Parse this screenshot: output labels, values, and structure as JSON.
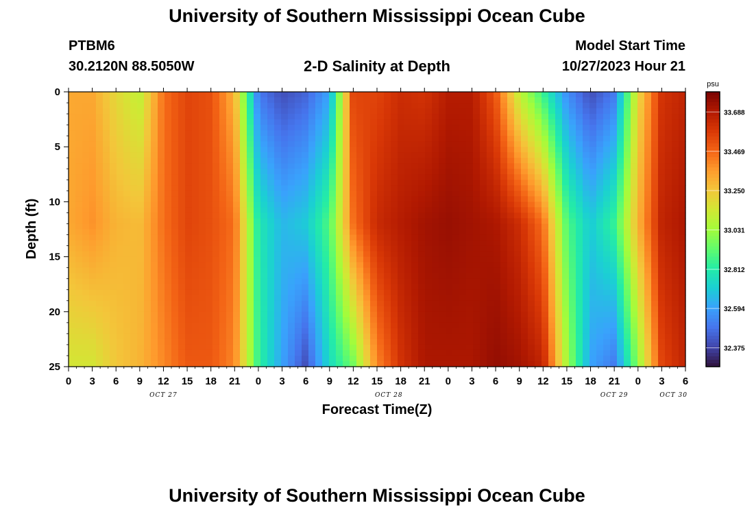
{
  "header": {
    "title": "University of Southern Mississippi Ocean Cube",
    "station_id": "PTBM6",
    "coordinates": "30.2120N  88.5050W",
    "plot_title": "2-D Salinity at Depth",
    "model_start_label": "Model Start Time",
    "model_start_value": "10/27/2023 Hour 21"
  },
  "footer": {
    "title": "University of Southern Mississippi Ocean Cube"
  },
  "chart_data": {
    "type": "heatmap",
    "title": "2-D Salinity at Depth",
    "xlabel": "Forecast Time(Z)",
    "ylabel": "Depth (ft)",
    "x_tick_labels": [
      "0",
      "3",
      "6",
      "9",
      "12",
      "15",
      "18",
      "21",
      "0",
      "3",
      "6",
      "9",
      "12",
      "15",
      "18",
      "21",
      "0",
      "3",
      "6",
      "9",
      "12",
      "15",
      "18",
      "21",
      "0",
      "3",
      "6"
    ],
    "date_labels": [
      "OCT 27",
      "OCT 28",
      "OCT 29",
      "OCT 30"
    ],
    "y_ticks": [
      0,
      5,
      10,
      15,
      20,
      25
    ],
    "ylim": [
      0,
      25
    ],
    "colorbar": {
      "unit": "psu",
      "ticks": [
        "33.688",
        "33.469",
        "33.250",
        "33.031",
        "32.812",
        "32.594",
        "32.375"
      ],
      "range": [
        32.27,
        33.8
      ],
      "colormap": [
        "#30123b",
        "#4145ab",
        "#4675ed",
        "#39a2fc",
        "#1bcfd4",
        "#24eca6",
        "#61fc6c",
        "#a4fc3b",
        "#d1e834",
        "#f3c63a",
        "#fe9b2d",
        "#f36315",
        "#d93806",
        "#b11901",
        "#7a0403"
      ]
    },
    "profile_salinity_psu": [
      {
        "hour": 0,
        "surface": 33.33,
        "mid": 33.33,
        "bottom": 33.15
      },
      {
        "hour": 3,
        "surface": 33.33,
        "mid": 33.38,
        "bottom": 33.15
      },
      {
        "hour": 6,
        "surface": 33.2,
        "mid": 33.3,
        "bottom": 33.25
      },
      {
        "hour": 9,
        "surface": 33.1,
        "mid": 33.28,
        "bottom": 33.3
      },
      {
        "hour": 12,
        "surface": 33.45,
        "mid": 33.45,
        "bottom": 33.4
      },
      {
        "hour": 15,
        "surface": 33.55,
        "mid": 33.55,
        "bottom": 33.5
      },
      {
        "hour": 18,
        "surface": 33.52,
        "mid": 33.52,
        "bottom": 33.5
      },
      {
        "hour": 21,
        "surface": 33.3,
        "mid": 33.45,
        "bottom": 33.4
      },
      {
        "hour": 24,
        "surface": 32.5,
        "mid": 32.8,
        "bottom": 32.85
      },
      {
        "hour": 27,
        "surface": 32.4,
        "mid": 32.65,
        "bottom": 32.6
      },
      {
        "hour": 30,
        "surface": 32.45,
        "mid": 32.7,
        "bottom": 32.4
      },
      {
        "hour": 33,
        "surface": 32.6,
        "mid": 32.9,
        "bottom": 32.75
      },
      {
        "hour": 36,
        "surface": 33.55,
        "mid": 33.45,
        "bottom": 32.95
      },
      {
        "hour": 39,
        "surface": 33.55,
        "mid": 33.63,
        "bottom": 33.4
      },
      {
        "hour": 42,
        "surface": 33.62,
        "mid": 33.68,
        "bottom": 33.6
      },
      {
        "hour": 45,
        "surface": 33.6,
        "mid": 33.72,
        "bottom": 33.7
      },
      {
        "hour": 48,
        "surface": 33.68,
        "mid": 33.74,
        "bottom": 33.7
      },
      {
        "hour": 51,
        "surface": 33.68,
        "mid": 33.72,
        "bottom": 33.7
      },
      {
        "hour": 54,
        "surface": 33.5,
        "mid": 33.7,
        "bottom": 33.75
      },
      {
        "hour": 57,
        "surface": 33.1,
        "mid": 33.62,
        "bottom": 33.72
      },
      {
        "hour": 60,
        "surface": 32.85,
        "mid": 33.45,
        "bottom": 33.65
      },
      {
        "hour": 63,
        "surface": 32.55,
        "mid": 32.9,
        "bottom": 33.05
      },
      {
        "hour": 66,
        "surface": 32.4,
        "mid": 32.7,
        "bottom": 32.6
      },
      {
        "hour": 69,
        "surface": 32.5,
        "mid": 32.85,
        "bottom": 32.5
      },
      {
        "hour": 72,
        "surface": 33.2,
        "mid": 33.3,
        "bottom": 33.0
      },
      {
        "hour": 75,
        "surface": 33.6,
        "mid": 33.65,
        "bottom": 33.55
      },
      {
        "hour": 78,
        "surface": 33.65,
        "mid": 33.7,
        "bottom": 33.65
      }
    ]
  }
}
